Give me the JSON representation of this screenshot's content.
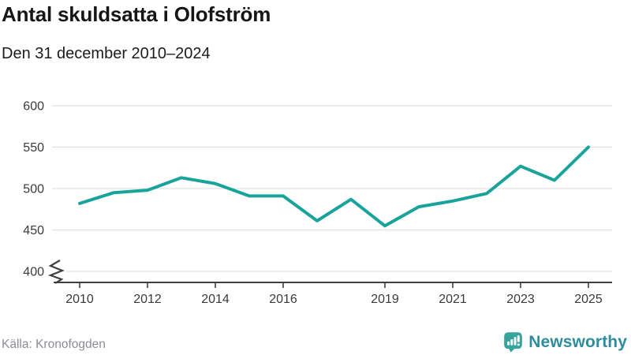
{
  "header": {
    "title": "Antal skuldsatta i Olofström",
    "subtitle": "Den 31 december 2010–2024"
  },
  "chart_data": {
    "type": "line",
    "series_name": "Antal skuldsatta",
    "x": [
      2010,
      2011,
      2012,
      2013,
      2014,
      2015,
      2016,
      2017,
      2018,
      2019,
      2020,
      2021,
      2022,
      2023,
      2024,
      2025
    ],
    "values": [
      482,
      495,
      498,
      513,
      506,
      491,
      491,
      461,
      487,
      455,
      478,
      485,
      494,
      527,
      510,
      550
    ],
    "title": "Antal skuldsatta i Olofström",
    "subtitle": "Den 31 december 2010–2024",
    "xlabel": "",
    "ylabel": "",
    "ylim": [
      400,
      600
    ],
    "y_ticks": [
      400,
      450,
      500,
      550,
      600
    ],
    "x_tick_labels": [
      "2010",
      "2012",
      "2014",
      "2016",
      "2019",
      "2021",
      "2023",
      "2025"
    ],
    "x_tick_years": [
      2010,
      2012,
      2014,
      2016,
      2019,
      2021,
      2023,
      2025
    ],
    "grid": true,
    "legend": false,
    "axis_break_at_bottom": true,
    "line_color": "#1aa39b"
  },
  "footer": {
    "source": "Källa: Kronofogden",
    "brand": "Newsworthy"
  },
  "colors": {
    "line": "#1aa39b",
    "grid": "#e2e2e2",
    "axis": "#3f3f3f",
    "tick_text": "#3a3a3a",
    "title_text": "#161616",
    "source_text": "#8c8c94",
    "brand_icon": "#37a39d",
    "brand_text": "#2e8d9e"
  }
}
